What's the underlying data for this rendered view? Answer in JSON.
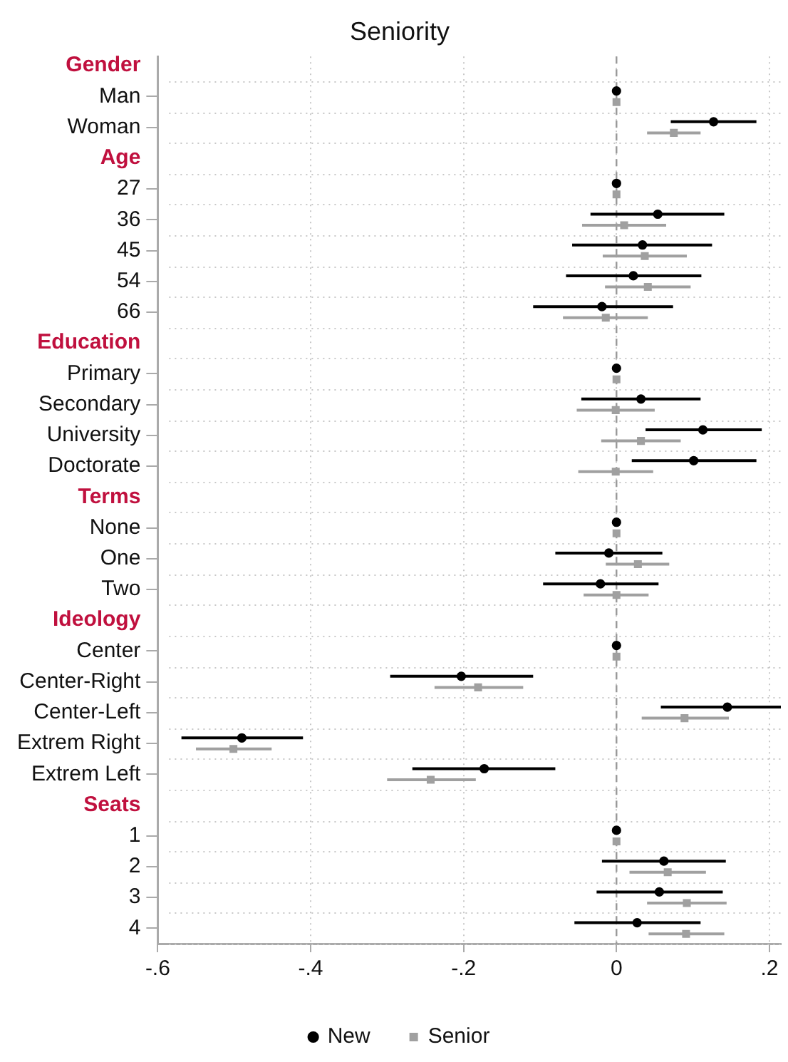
{
  "chart_data": {
    "type": "scatter",
    "orientation": "horizontal",
    "title": "Seniority",
    "categories": [
      "Gender",
      "Man",
      "Woman",
      "Age",
      "27",
      "36",
      "45",
      "54",
      "66",
      "Education",
      "Primary",
      "Secondary",
      "University",
      "Doctorate",
      "Terms",
      "None",
      "One",
      "Two",
      "Ideology",
      "Center",
      "Center-Right",
      "Center-Left",
      "Extrem Right",
      "Extrem Left",
      "Seats",
      "1",
      "2",
      "3",
      "4"
    ],
    "series": [
      {
        "name": "New",
        "color": "#000000",
        "marker": "circle",
        "values": [
          null,
          0,
          0.127,
          null,
          0,
          0.054,
          0.034,
          0.022,
          -0.019,
          null,
          0,
          0.032,
          0.113,
          0.101,
          null,
          0,
          -0.01,
          -0.021,
          null,
          0,
          -0.203,
          0.145,
          -0.49,
          -0.173,
          null,
          0,
          0.062,
          0.056,
          0.027
        ],
        "errors": [
          null,
          null,
          [
            0.071,
            0.183
          ],
          null,
          null,
          [
            -0.034,
            0.141
          ],
          [
            -0.058,
            0.125
          ],
          [
            -0.066,
            0.111
          ],
          [
            -0.109,
            0.074
          ],
          null,
          null,
          [
            -0.046,
            0.11
          ],
          [
            0.038,
            0.19
          ],
          [
            0.02,
            0.183
          ],
          null,
          null,
          [
            -0.08,
            0.06
          ],
          [
            -0.096,
            0.055
          ],
          null,
          null,
          [
            -0.296,
            -0.109
          ],
          [
            0.058,
            0.215
          ],
          [
            -0.569,
            -0.41
          ],
          [
            -0.267,
            -0.08
          ],
          null,
          null,
          [
            -0.019,
            0.143
          ],
          [
            -0.026,
            0.139
          ],
          [
            -0.055,
            0.11
          ]
        ]
      },
      {
        "name": "Senior",
        "color": "#a0a0a0",
        "marker": "square",
        "values": [
          null,
          0,
          0.075,
          null,
          0,
          0.01,
          0.037,
          0.041,
          -0.014,
          null,
          0,
          -0.001,
          0.032,
          -0.001,
          null,
          0,
          0.028,
          0.0,
          null,
          0,
          -0.181,
          0.089,
          -0.501,
          -0.243,
          null,
          0,
          0.067,
          0.092,
          0.091
        ],
        "errors": [
          null,
          null,
          [
            0.04,
            0.11
          ],
          null,
          null,
          [
            -0.045,
            0.065
          ],
          [
            -0.018,
            0.092
          ],
          [
            -0.015,
            0.097
          ],
          [
            -0.07,
            0.041
          ],
          null,
          null,
          [
            -0.052,
            0.05
          ],
          [
            -0.02,
            0.084
          ],
          [
            -0.05,
            0.048
          ],
          null,
          null,
          [
            -0.014,
            0.069
          ],
          [
            -0.043,
            0.042
          ],
          null,
          null,
          [
            -0.238,
            -0.122
          ],
          [
            0.033,
            0.147
          ],
          [
            -0.55,
            -0.451
          ],
          [
            -0.3,
            -0.184
          ],
          null,
          null,
          [
            0.017,
            0.117
          ],
          [
            0.04,
            0.144
          ],
          [
            0.042,
            0.141
          ]
        ]
      }
    ],
    "xlim": [
      -0.6,
      0.215
    ],
    "xticks": [
      {
        "value": -0.6,
        "label": "-.6"
      },
      {
        "value": -0.4,
        "label": "-.4"
      },
      {
        "value": -0.2,
        "label": "-.2"
      },
      0,
      {
        "value": 0.2,
        "label": ".2"
      }
    ],
    "ref_lines": [
      {
        "axis": "x",
        "value": 0,
        "color": "#999999",
        "line_style": "dashed"
      }
    ],
    "grid": true,
    "legend": "bottom"
  }
}
